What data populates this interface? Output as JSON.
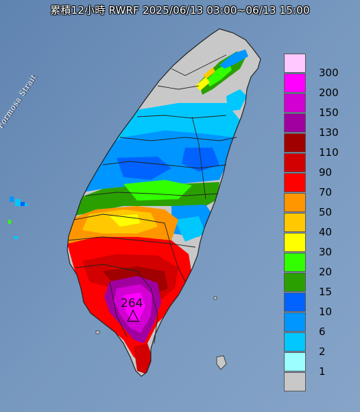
{
  "title": "累積12小時 RWRF 2025/06/13 03:00~06/13 15:00",
  "strait_label": "Formosa Strait",
  "peak": {
    "value": "264",
    "marker": "triangle-marker"
  },
  "legend": [
    {
      "label": "300",
      "color": "#ffc8ff"
    },
    {
      "label": "200",
      "color": "#ff00ff"
    },
    {
      "label": "150",
      "color": "#d200d2"
    },
    {
      "label": "130",
      "color": "#a000a0"
    },
    {
      "label": "110",
      "color": "#a00000"
    },
    {
      "label": "90",
      "color": "#d20000"
    },
    {
      "label": "70",
      "color": "#ff0000"
    },
    {
      "label": "50",
      "color": "#ff9600"
    },
    {
      "label": "40",
      "color": "#ffc800"
    },
    {
      "label": "30",
      "color": "#ffff00"
    },
    {
      "label": "20",
      "color": "#32ff00"
    },
    {
      "label": "15",
      "color": "#2aa000"
    },
    {
      "label": "10",
      "color": "#0063ff"
    },
    {
      "label": "6",
      "color": "#0096ff"
    },
    {
      "label": "2",
      "color": "#00c8ff"
    },
    {
      "label": "1",
      "color": "#9bffff"
    },
    {
      "label": "",
      "color": "#c8c8c8"
    }
  ],
  "colors": {
    "sea": "#6d8fb6",
    "land_no_rain": "#c8c8c8",
    "county_line": "#222222"
  }
}
